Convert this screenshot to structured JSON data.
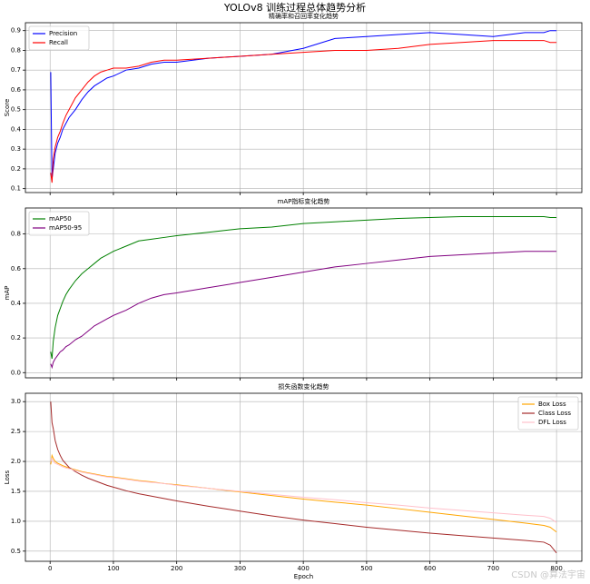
{
  "title": "YOLOv8 训练过程总体趋势分析",
  "watermark": "CSDN @算法宇宙",
  "chart_data": [
    {
      "type": "line",
      "title": "精确率和召回率变化趋势",
      "ylabel": "Score",
      "x": [
        1,
        3,
        5,
        8,
        12,
        16,
        20,
        25,
        30,
        40,
        50,
        60,
        70,
        80,
        90,
        100,
        120,
        140,
        160,
        180,
        200,
        250,
        300,
        350,
        400,
        450,
        500,
        550,
        600,
        650,
        700,
        750,
        780,
        790,
        800
      ],
      "series": [
        {
          "name": "Precision",
          "color": "#0000ff",
          "values": [
            0.69,
            0.15,
            0.2,
            0.28,
            0.33,
            0.36,
            0.4,
            0.43,
            0.46,
            0.5,
            0.55,
            0.59,
            0.62,
            0.64,
            0.66,
            0.67,
            0.7,
            0.71,
            0.73,
            0.74,
            0.74,
            0.76,
            0.77,
            0.78,
            0.81,
            0.86,
            0.87,
            0.88,
            0.89,
            0.88,
            0.87,
            0.89,
            0.89,
            0.9,
            0.9
          ]
        },
        {
          "name": "Recall",
          "color": "#ff0000",
          "values": [
            0.18,
            0.13,
            0.25,
            0.31,
            0.36,
            0.39,
            0.43,
            0.47,
            0.5,
            0.56,
            0.6,
            0.64,
            0.67,
            0.69,
            0.7,
            0.71,
            0.71,
            0.72,
            0.74,
            0.75,
            0.75,
            0.76,
            0.77,
            0.78,
            0.79,
            0.8,
            0.8,
            0.81,
            0.83,
            0.84,
            0.85,
            0.85,
            0.85,
            0.84,
            0.84
          ]
        }
      ],
      "xlim": [
        -39,
        840
      ],
      "xticks": [
        0,
        100,
        200,
        300,
        400,
        500,
        600,
        700,
        800
      ],
      "ylim": [
        0.08,
        0.94
      ],
      "yticks": [
        0.1,
        0.2,
        0.3,
        0.4,
        0.5,
        0.6,
        0.7,
        0.8,
        0.9
      ],
      "grid": true,
      "legend": "upper-left"
    },
    {
      "type": "line",
      "title": "mAP指标变化趋势",
      "ylabel": "mAP",
      "x": [
        1,
        3,
        5,
        8,
        12,
        16,
        20,
        25,
        30,
        40,
        50,
        60,
        70,
        80,
        90,
        100,
        120,
        140,
        160,
        180,
        200,
        250,
        300,
        350,
        400,
        450,
        500,
        550,
        600,
        650,
        700,
        750,
        780,
        790,
        800
      ],
      "series": [
        {
          "name": "mAP50",
          "color": "#008000",
          "values": [
            0.12,
            0.08,
            0.18,
            0.26,
            0.33,
            0.37,
            0.41,
            0.45,
            0.48,
            0.53,
            0.57,
            0.6,
            0.63,
            0.66,
            0.68,
            0.7,
            0.73,
            0.76,
            0.77,
            0.78,
            0.79,
            0.81,
            0.83,
            0.84,
            0.86,
            0.87,
            0.88,
            0.89,
            0.895,
            0.9,
            0.9,
            0.9,
            0.9,
            0.895,
            0.895
          ]
        },
        {
          "name": "mAP50-95",
          "color": "#800080",
          "values": [
            0.05,
            0.03,
            0.06,
            0.08,
            0.1,
            0.12,
            0.13,
            0.15,
            0.16,
            0.19,
            0.21,
            0.24,
            0.27,
            0.29,
            0.31,
            0.33,
            0.36,
            0.4,
            0.43,
            0.45,
            0.46,
            0.49,
            0.52,
            0.55,
            0.58,
            0.61,
            0.63,
            0.65,
            0.67,
            0.68,
            0.69,
            0.7,
            0.7,
            0.7,
            0.7
          ]
        }
      ],
      "xlim": [
        -39,
        840
      ],
      "xticks": [
        0,
        100,
        200,
        300,
        400,
        500,
        600,
        700,
        800
      ],
      "ylim": [
        -0.03,
        0.95
      ],
      "yticks": [
        {
          "value": 0,
          "label": "0.0"
        },
        0.2,
        0.4,
        0.6,
        0.8
      ],
      "grid": true,
      "legend": "upper-left"
    },
    {
      "type": "line",
      "title": "损失函数变化趋势",
      "ylabel": "Loss",
      "xlabel": "Epoch",
      "x": [
        1,
        3,
        5,
        8,
        12,
        16,
        20,
        25,
        30,
        40,
        50,
        60,
        70,
        80,
        90,
        100,
        120,
        140,
        160,
        180,
        200,
        250,
        300,
        350,
        400,
        450,
        500,
        550,
        600,
        650,
        700,
        750,
        780,
        790,
        800
      ],
      "series": [
        {
          "name": "Box Loss",
          "color": "#ffa500",
          "values": [
            1.95,
            2.1,
            2.05,
            2.0,
            1.97,
            1.95,
            1.93,
            1.91,
            1.89,
            1.86,
            1.83,
            1.81,
            1.79,
            1.77,
            1.75,
            1.74,
            1.71,
            1.68,
            1.66,
            1.63,
            1.61,
            1.55,
            1.49,
            1.43,
            1.37,
            1.32,
            1.27,
            1.21,
            1.15,
            1.09,
            1.03,
            0.97,
            0.93,
            0.9,
            0.82
          ]
        },
        {
          "name": "Class Loss",
          "color": "#a52a2a",
          "values": [
            3.0,
            2.65,
            2.55,
            2.35,
            2.2,
            2.1,
            2.02,
            1.96,
            1.9,
            1.83,
            1.77,
            1.72,
            1.68,
            1.64,
            1.6,
            1.57,
            1.51,
            1.46,
            1.42,
            1.38,
            1.34,
            1.25,
            1.17,
            1.09,
            1.02,
            0.96,
            0.9,
            0.85,
            0.8,
            0.76,
            0.72,
            0.68,
            0.65,
            0.6,
            0.47
          ]
        },
        {
          "name": "DFL Loss",
          "color": "#ffc0cb",
          "values": [
            2.0,
            2.05,
            2.0,
            1.97,
            1.95,
            1.93,
            1.91,
            1.89,
            1.88,
            1.85,
            1.82,
            1.8,
            1.78,
            1.76,
            1.74,
            1.73,
            1.7,
            1.67,
            1.65,
            1.63,
            1.6,
            1.55,
            1.5,
            1.45,
            1.4,
            1.36,
            1.31,
            1.27,
            1.22,
            1.18,
            1.14,
            1.1,
            1.08,
            1.05,
            0.98
          ]
        }
      ],
      "xlim": [
        -39,
        840
      ],
      "xticks": [
        0,
        100,
        200,
        300,
        400,
        500,
        600,
        700,
        800
      ],
      "ylim": [
        0.33,
        3.14
      ],
      "yticks": [
        0.5,
        {
          "value": 1,
          "label": "1.0"
        },
        1.5,
        {
          "value": 2,
          "label": "2.0"
        },
        2.5,
        {
          "value": 3,
          "label": "3.0"
        }
      ],
      "grid": true,
      "legend": "upper-right"
    }
  ]
}
